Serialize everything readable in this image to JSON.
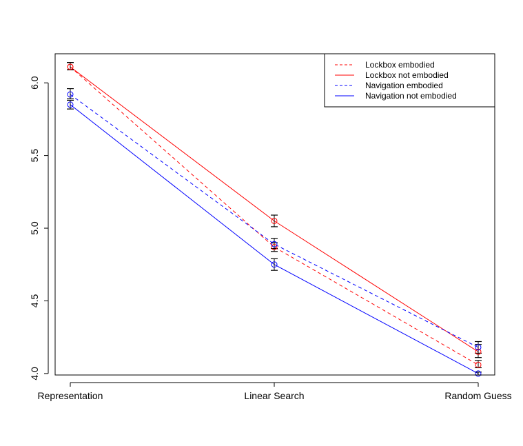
{
  "chart_data": {
    "type": "line",
    "title": "",
    "xlabel": "",
    "ylabel": "",
    "categories": [
      "Representation",
      "Linear Search",
      "Random Guess"
    ],
    "ylim": [
      3.99,
      6.2
    ],
    "yticks": [
      "4.0",
      "4.5",
      "5.0",
      "5.5",
      "6.0"
    ],
    "grid": false,
    "legend_position": "top-right",
    "error_bars": true,
    "series": [
      {
        "name": "Lockbox embodied",
        "color": "#ff0000",
        "dash": "dashed",
        "values": [
          6.11,
          4.87,
          4.06
        ],
        "err_low": [
          6.09,
          4.84,
          4.04
        ],
        "err_high": [
          6.14,
          4.9,
          4.09
        ]
      },
      {
        "name": "Lockbox not embodied",
        "color": "#ff0000",
        "dash": "solid",
        "values": [
          6.11,
          5.05,
          4.15
        ],
        "err_low": [
          6.09,
          5.01,
          4.11
        ],
        "err_high": [
          6.14,
          5.09,
          4.2
        ]
      },
      {
        "name": "Navigation embodied",
        "color": "#0000ff",
        "dash": "dashed",
        "values": [
          5.92,
          4.89,
          4.18
        ],
        "err_low": [
          5.89,
          4.86,
          4.14
        ],
        "err_high": [
          5.96,
          4.93,
          4.22
        ]
      },
      {
        "name": "Navigation not embodied",
        "color": "#0000ff",
        "dash": "solid",
        "values": [
          5.85,
          4.75,
          4.0
        ],
        "err_low": [
          5.82,
          4.71,
          3.99
        ],
        "err_high": [
          5.88,
          4.79,
          4.01
        ]
      }
    ]
  }
}
